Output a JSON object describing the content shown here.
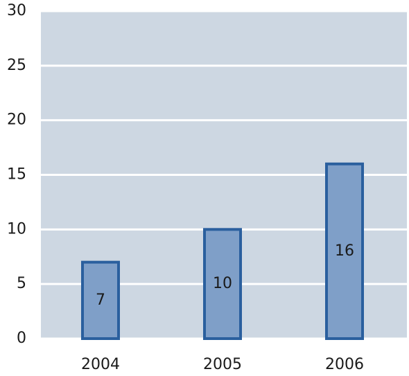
{
  "chart_data": {
    "type": "bar",
    "categories": [
      "2004",
      "2005",
      "2006"
    ],
    "values": [
      7,
      10,
      16
    ],
    "color": "#7f9fc8",
    "edge_color": "#2a5f9e",
    "background": "#cdd7e2",
    "ylim": [
      0,
      30
    ],
    "yticks": [
      0,
      5,
      10,
      15,
      20,
      25,
      30
    ],
    "grid": true,
    "data_labels": true
  }
}
